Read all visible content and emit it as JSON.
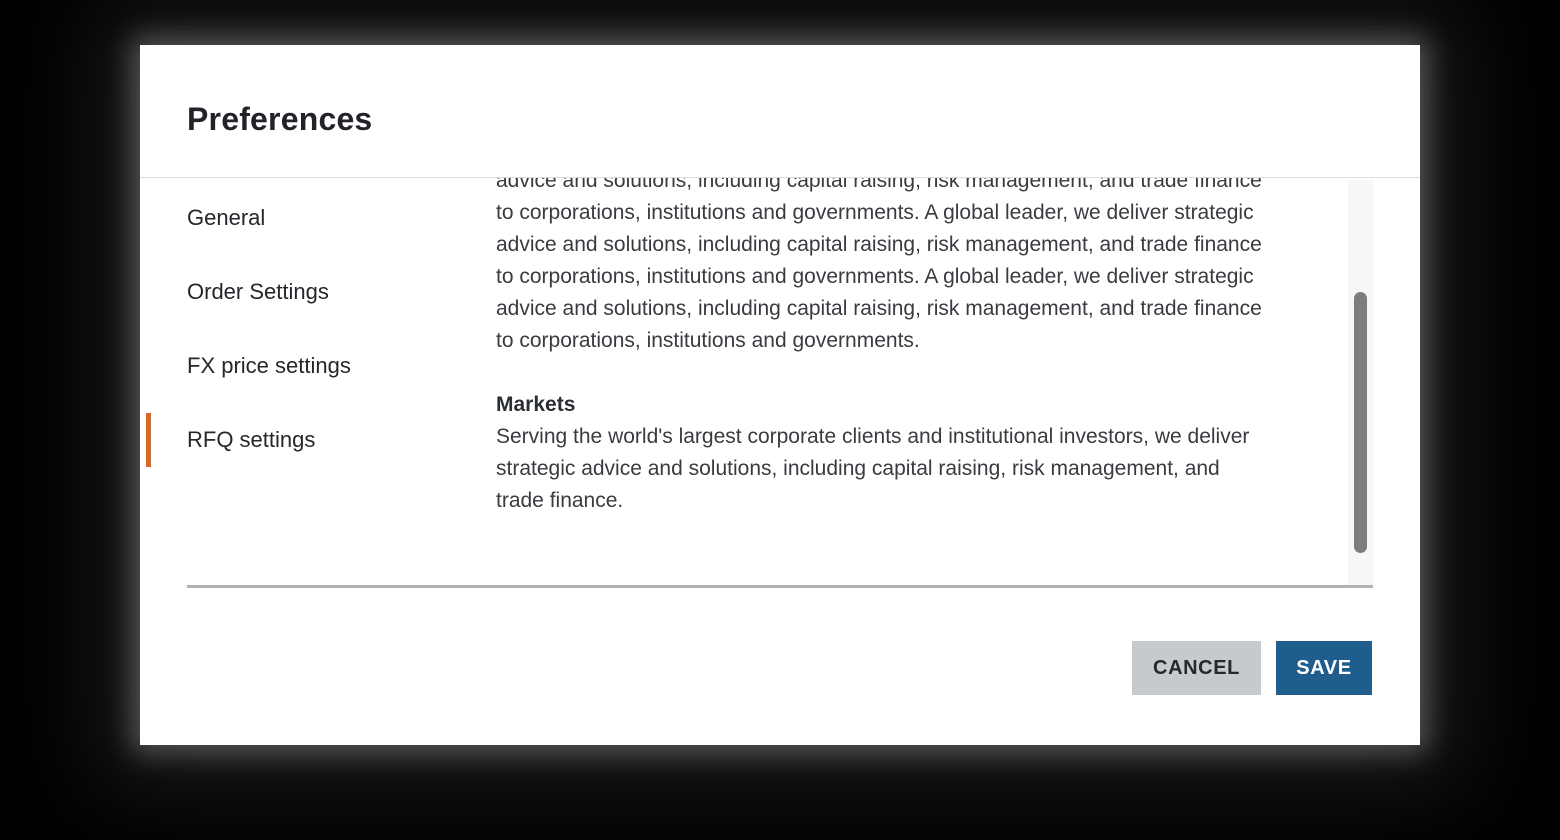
{
  "dialog": {
    "title": "Preferences",
    "sidebar": {
      "items": [
        {
          "label": "General",
          "active": false
        },
        {
          "label": "Order Settings",
          "active": false
        },
        {
          "label": "FX price settings",
          "active": false
        },
        {
          "label": "RFQ settings",
          "active": true
        }
      ]
    },
    "content": {
      "about_paragraph": "advice and solutions, including capital raising, risk management, and trade finance to corporations, institutions and governments. A global leader, we deliver strategic advice and solutions, including capital raising, risk management, and trade finance to corporations, institutions and governments. A global leader, we deliver strategic advice and solutions, including capital raising, risk management, and trade finance to corporations, institutions and governments.",
      "markets_heading": "Markets",
      "markets_paragraph": "Serving the world's largest corporate clients and institutional investors, we deliver strategic advice and solutions, including capital raising, risk management, and trade finance."
    },
    "footer": {
      "cancel_label": "CANCEL",
      "save_label": "SAVE"
    },
    "colors": {
      "accent_orange": "#E0661A",
      "save_button_blue": "#1F5D8C",
      "cancel_button_gray": "#C6CACD",
      "scrollbar_thumb_gray": "#7D7D7D"
    }
  }
}
